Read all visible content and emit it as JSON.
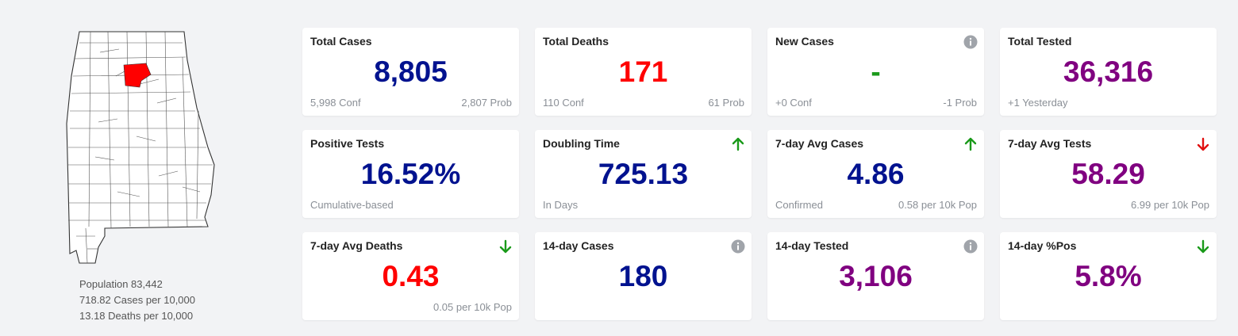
{
  "region": {
    "population": "Population 83,442",
    "cases_per_10k": "718.82 Cases per 10,000",
    "deaths_per_10k": "13.18 Deaths per 10,000",
    "highlight_color": "#ff0000"
  },
  "cards": {
    "total_cases": {
      "title": "Total Cases",
      "value": "8,805",
      "left": "5,998 Conf",
      "right": "2,807 Prob",
      "color": "#00128f"
    },
    "total_deaths": {
      "title": "Total Deaths",
      "value": "171",
      "left": "110 Conf",
      "right": "61 Prob",
      "color": "#ff0000"
    },
    "new_cases": {
      "title": "New Cases",
      "value": "-",
      "left": "+0 Conf",
      "right": "-1 Prob",
      "color": "#1a9a1a",
      "icon": "info-icon"
    },
    "total_tested": {
      "title": "Total Tested",
      "value": "36,316",
      "left": "+1 Yesterday",
      "color": "#800080"
    },
    "positive_tests": {
      "title": "Positive Tests",
      "value": "16.52%",
      "left": "Cumulative-based",
      "color": "#00128f"
    },
    "doubling_time": {
      "title": "Doubling Time",
      "value": "725.13",
      "left": "In Days",
      "color": "#00128f",
      "icon": "arrow-up-icon"
    },
    "avg7_cases": {
      "title": "7-day Avg Cases",
      "value": "4.86",
      "left": "Confirmed",
      "right": "0.58 per 10k Pop",
      "color": "#00128f",
      "icon": "arrow-up-icon"
    },
    "avg7_tests": {
      "title": "7-day Avg Tests",
      "value": "58.29",
      "right": "6.99 per 10k Pop",
      "color": "#800080",
      "icon": "arrow-down-icon"
    },
    "avg7_deaths": {
      "title": "7-day Avg Deaths",
      "value": "0.43",
      "right": "0.05 per 10k Pop",
      "color": "#ff0000",
      "icon": "arrow-down-icon"
    },
    "cases_14": {
      "title": "14-day Cases",
      "value": "180",
      "color": "#00128f",
      "icon": "info-icon"
    },
    "tested_14": {
      "title": "14-day Tested",
      "value": "3,106",
      "color": "#800080",
      "icon": "info-icon"
    },
    "pos_14": {
      "title": "14-day %Pos",
      "value": "5.8%",
      "color": "#800080",
      "icon": "arrow-down-icon"
    }
  }
}
